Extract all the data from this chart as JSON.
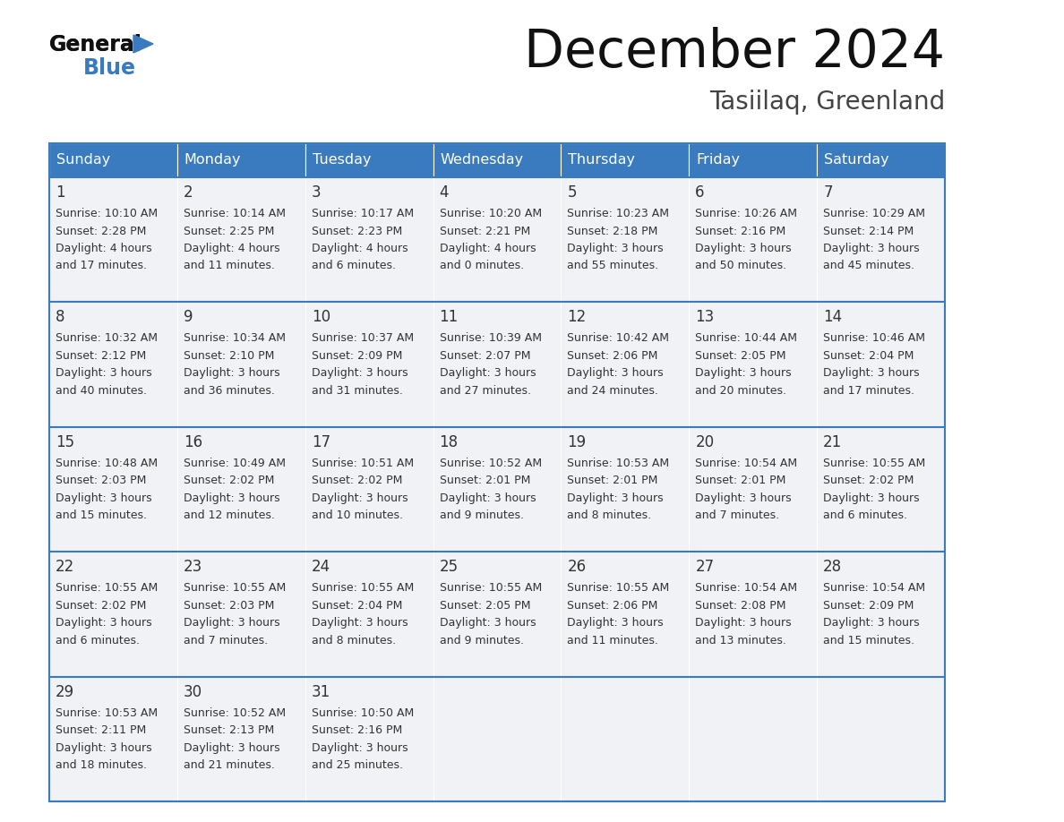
{
  "title": "December 2024",
  "subtitle": "Tasiilaq, Greenland",
  "header_color": "#3a7bbf",
  "header_text_color": "#ffffff",
  "cell_bg_color": "#f0f2f5",
  "border_color": "#3a7bbf",
  "title_color": "#111111",
  "subtitle_color": "#444444",
  "text_color": "#333333",
  "day_headers": [
    "Sunday",
    "Monday",
    "Tuesday",
    "Wednesday",
    "Thursday",
    "Friday",
    "Saturday"
  ],
  "weeks": [
    [
      {
        "day": "1",
        "sunrise": "10:10 AM",
        "sunset": "2:28 PM",
        "daylight": "4 hours",
        "daylight2": "and 17 minutes."
      },
      {
        "day": "2",
        "sunrise": "10:14 AM",
        "sunset": "2:25 PM",
        "daylight": "4 hours",
        "daylight2": "and 11 minutes."
      },
      {
        "day": "3",
        "sunrise": "10:17 AM",
        "sunset": "2:23 PM",
        "daylight": "4 hours",
        "daylight2": "and 6 minutes."
      },
      {
        "day": "4",
        "sunrise": "10:20 AM",
        "sunset": "2:21 PM",
        "daylight": "4 hours",
        "daylight2": "and 0 minutes."
      },
      {
        "day": "5",
        "sunrise": "10:23 AM",
        "sunset": "2:18 PM",
        "daylight": "3 hours",
        "daylight2": "and 55 minutes."
      },
      {
        "day": "6",
        "sunrise": "10:26 AM",
        "sunset": "2:16 PM",
        "daylight": "3 hours",
        "daylight2": "and 50 minutes."
      },
      {
        "day": "7",
        "sunrise": "10:29 AM",
        "sunset": "2:14 PM",
        "daylight": "3 hours",
        "daylight2": "and 45 minutes."
      }
    ],
    [
      {
        "day": "8",
        "sunrise": "10:32 AM",
        "sunset": "2:12 PM",
        "daylight": "3 hours",
        "daylight2": "and 40 minutes."
      },
      {
        "day": "9",
        "sunrise": "10:34 AM",
        "sunset": "2:10 PM",
        "daylight": "3 hours",
        "daylight2": "and 36 minutes."
      },
      {
        "day": "10",
        "sunrise": "10:37 AM",
        "sunset": "2:09 PM",
        "daylight": "3 hours",
        "daylight2": "and 31 minutes."
      },
      {
        "day": "11",
        "sunrise": "10:39 AM",
        "sunset": "2:07 PM",
        "daylight": "3 hours",
        "daylight2": "and 27 minutes."
      },
      {
        "day": "12",
        "sunrise": "10:42 AM",
        "sunset": "2:06 PM",
        "daylight": "3 hours",
        "daylight2": "and 24 minutes."
      },
      {
        "day": "13",
        "sunrise": "10:44 AM",
        "sunset": "2:05 PM",
        "daylight": "3 hours",
        "daylight2": "and 20 minutes."
      },
      {
        "day": "14",
        "sunrise": "10:46 AM",
        "sunset": "2:04 PM",
        "daylight": "3 hours",
        "daylight2": "and 17 minutes."
      }
    ],
    [
      {
        "day": "15",
        "sunrise": "10:48 AM",
        "sunset": "2:03 PM",
        "daylight": "3 hours",
        "daylight2": "and 15 minutes."
      },
      {
        "day": "16",
        "sunrise": "10:49 AM",
        "sunset": "2:02 PM",
        "daylight": "3 hours",
        "daylight2": "and 12 minutes."
      },
      {
        "day": "17",
        "sunrise": "10:51 AM",
        "sunset": "2:02 PM",
        "daylight": "3 hours",
        "daylight2": "and 10 minutes."
      },
      {
        "day": "18",
        "sunrise": "10:52 AM",
        "sunset": "2:01 PM",
        "daylight": "3 hours",
        "daylight2": "and 9 minutes."
      },
      {
        "day": "19",
        "sunrise": "10:53 AM",
        "sunset": "2:01 PM",
        "daylight": "3 hours",
        "daylight2": "and 8 minutes."
      },
      {
        "day": "20",
        "sunrise": "10:54 AM",
        "sunset": "2:01 PM",
        "daylight": "3 hours",
        "daylight2": "and 7 minutes."
      },
      {
        "day": "21",
        "sunrise": "10:55 AM",
        "sunset": "2:02 PM",
        "daylight": "3 hours",
        "daylight2": "and 6 minutes."
      }
    ],
    [
      {
        "day": "22",
        "sunrise": "10:55 AM",
        "sunset": "2:02 PM",
        "daylight": "3 hours",
        "daylight2": "and 6 minutes."
      },
      {
        "day": "23",
        "sunrise": "10:55 AM",
        "sunset": "2:03 PM",
        "daylight": "3 hours",
        "daylight2": "and 7 minutes."
      },
      {
        "day": "24",
        "sunrise": "10:55 AM",
        "sunset": "2:04 PM",
        "daylight": "3 hours",
        "daylight2": "and 8 minutes."
      },
      {
        "day": "25",
        "sunrise": "10:55 AM",
        "sunset": "2:05 PM",
        "daylight": "3 hours",
        "daylight2": "and 9 minutes."
      },
      {
        "day": "26",
        "sunrise": "10:55 AM",
        "sunset": "2:06 PM",
        "daylight": "3 hours",
        "daylight2": "and 11 minutes."
      },
      {
        "day": "27",
        "sunrise": "10:54 AM",
        "sunset": "2:08 PM",
        "daylight": "3 hours",
        "daylight2": "and 13 minutes."
      },
      {
        "day": "28",
        "sunrise": "10:54 AM",
        "sunset": "2:09 PM",
        "daylight": "3 hours",
        "daylight2": "and 15 minutes."
      }
    ],
    [
      {
        "day": "29",
        "sunrise": "10:53 AM",
        "sunset": "2:11 PM",
        "daylight": "3 hours",
        "daylight2": "and 18 minutes."
      },
      {
        "day": "30",
        "sunrise": "10:52 AM",
        "sunset": "2:13 PM",
        "daylight": "3 hours",
        "daylight2": "and 21 minutes."
      },
      {
        "day": "31",
        "sunrise": "10:50 AM",
        "sunset": "2:16 PM",
        "daylight": "3 hours",
        "daylight2": "and 25 minutes."
      },
      null,
      null,
      null,
      null
    ]
  ]
}
